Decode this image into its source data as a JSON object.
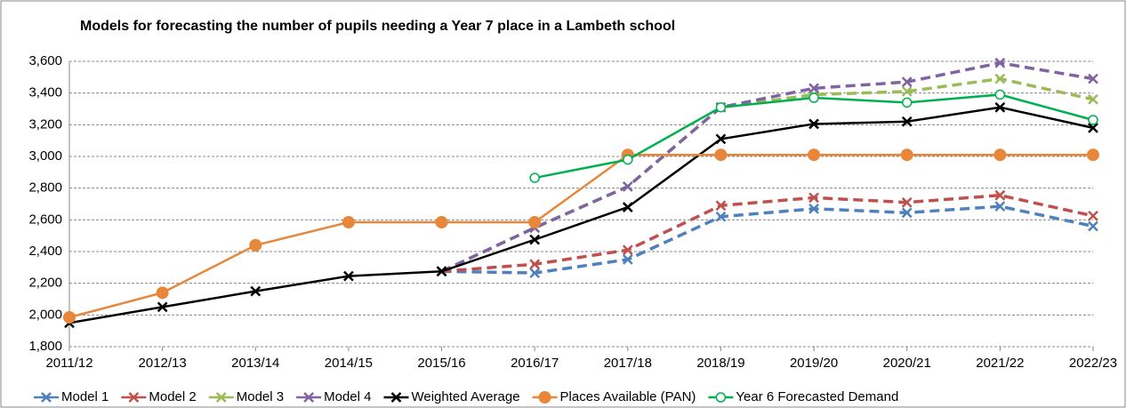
{
  "chart_data": {
    "type": "line",
    "title": "Models for forecasting the number of pupils needing a Year 7 place in a Lambeth school",
    "categories": [
      "2011/12",
      "2012/13",
      "2013/14",
      "2014/15",
      "2015/16",
      "2016/17",
      "2017/18",
      "2018/19",
      "2019/20",
      "2020/21",
      "2021/22",
      "2022/23"
    ],
    "ylim": [
      1800,
      3600
    ],
    "yticks": [
      {
        "value": 1800,
        "label": "1,800"
      },
      {
        "value": 2000,
        "label": "2,000"
      },
      {
        "value": 2200,
        "label": "2,200"
      },
      {
        "value": 2400,
        "label": "2,400"
      },
      {
        "value": 2600,
        "label": "2,600"
      },
      {
        "value": 2800,
        "label": "2,800"
      },
      {
        "value": 3000,
        "label": "3,000"
      },
      {
        "value": 3200,
        "label": "3,200"
      },
      {
        "value": 3400,
        "label": "3,400"
      },
      {
        "value": 3600,
        "label": "3,600"
      }
    ],
    "grid": true,
    "legend": "bottom",
    "series": [
      {
        "name": "Model 1",
        "color": "#4f81bd",
        "marker": "x",
        "dashed": true,
        "values": [
          null,
          null,
          null,
          null,
          2275,
          2265,
          2350,
          2620,
          2670,
          2645,
          2685,
          2560
        ]
      },
      {
        "name": "Model 2",
        "color": "#c0504d",
        "marker": "x",
        "dashed": true,
        "values": [
          null,
          null,
          null,
          null,
          2275,
          2320,
          2410,
          2690,
          2740,
          2710,
          2755,
          2625
        ]
      },
      {
        "name": "Model 3",
        "color": "#9bbb59",
        "marker": "x",
        "dashed": true,
        "values": [
          null,
          null,
          null,
          null,
          2275,
          2550,
          2810,
          3310,
          3390,
          3410,
          3490,
          3360
        ]
      },
      {
        "name": "Model 4",
        "color": "#8064a2",
        "marker": "x",
        "dashed": true,
        "values": [
          null,
          null,
          null,
          null,
          2275,
          2550,
          2810,
          3310,
          3430,
          3470,
          3590,
          3490
        ]
      },
      {
        "name": "Weighted Average",
        "color": "#000000",
        "marker": "x",
        "dashed": false,
        "values": [
          1950,
          2050,
          2150,
          2245,
          2275,
          2475,
          2680,
          3110,
          3205,
          3220,
          3310,
          3180
        ]
      },
      {
        "name": "Places Available (PAN)",
        "color": "#e8873a",
        "marker": "dot",
        "dashed": false,
        "values": [
          1985,
          2140,
          2440,
          2585,
          2585,
          2585,
          3010,
          3010,
          3010,
          3010,
          3010,
          3010
        ]
      },
      {
        "name": "Year 6 Forecasted Demand",
        "color": "#00b050",
        "marker": "ring",
        "dashed": false,
        "values": [
          null,
          null,
          null,
          null,
          null,
          2865,
          2980,
          3310,
          3370,
          3340,
          3390,
          3230
        ]
      }
    ]
  }
}
